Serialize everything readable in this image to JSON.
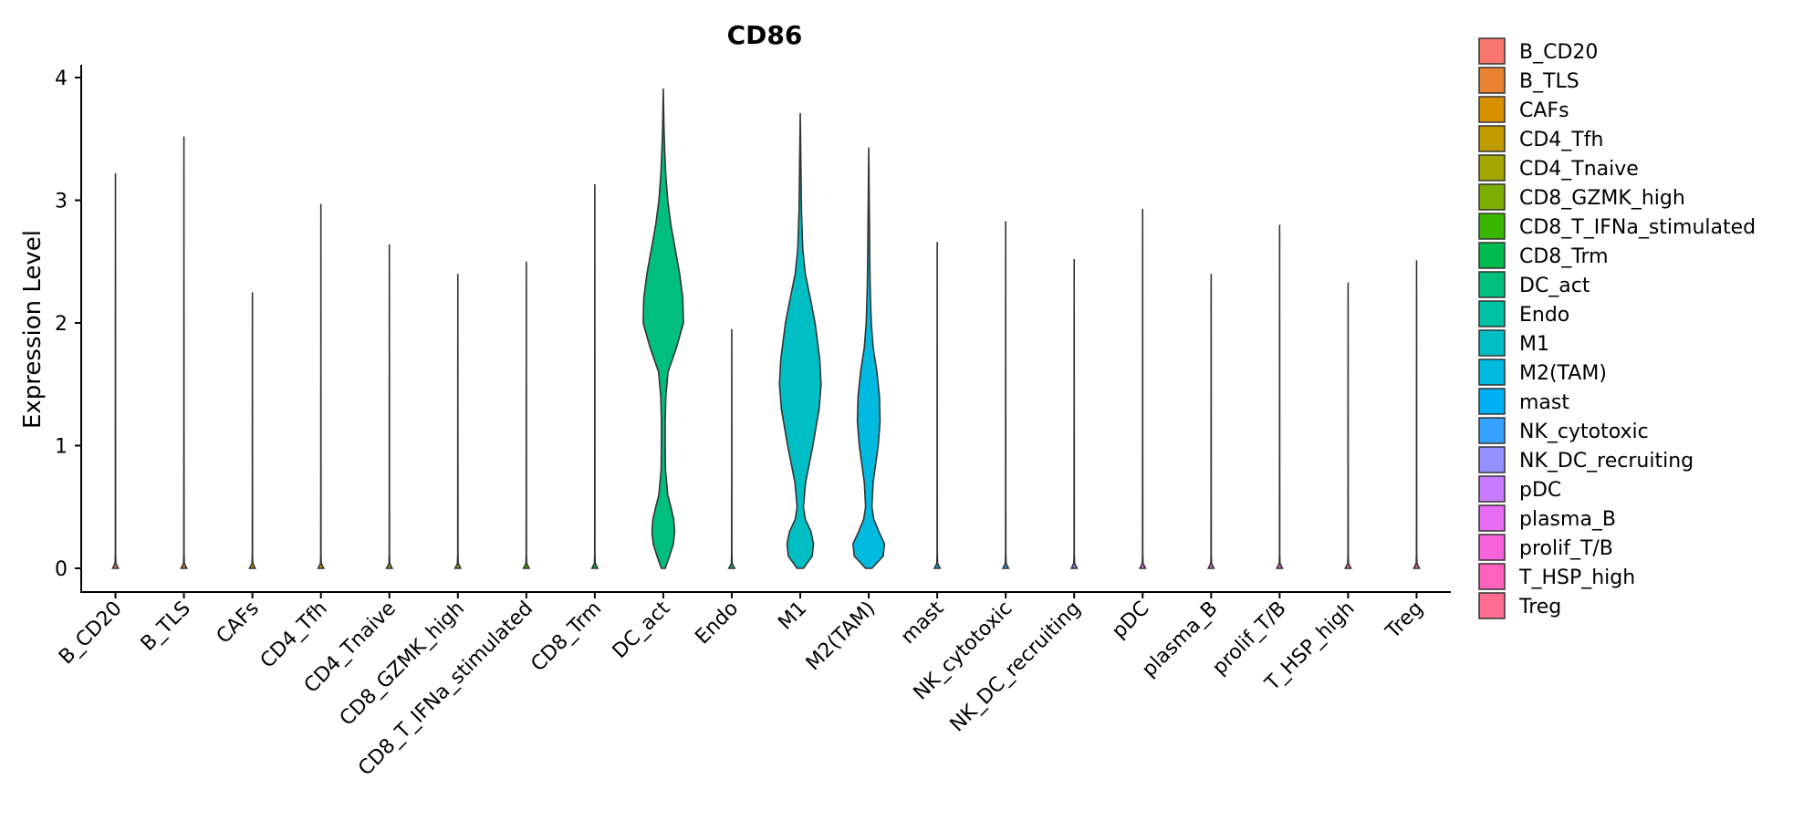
{
  "chart_data": {
    "type": "violin",
    "title": "CD86",
    "xlabel": "",
    "ylabel": "Expression Level",
    "ylim": [
      0,
      4
    ],
    "yticks": [
      "0",
      "1",
      "2",
      "3",
      "4"
    ],
    "grid": false,
    "legend_position": "right",
    "categories": [
      "B_CD20",
      "B_TLS",
      "CAFs",
      "CD4_Tfh",
      "CD4_Tnaive",
      "CD8_GZMK_high",
      "CD8_T_IFNa_stimulated",
      "CD8_Trm",
      "DC_act",
      "Endo",
      "M1",
      "M2(TAM)",
      "mast",
      "NK_cytotoxic",
      "NK_DC_recruiting",
      "pDC",
      "plasma_B",
      "prolif_T/B",
      "T_HSP_high",
      "Treg"
    ],
    "colors": [
      "#F8766D",
      "#EA8331",
      "#D89000",
      "#C09B00",
      "#A3A500",
      "#7CAE00",
      "#39B600",
      "#00BB4E",
      "#00BF7D",
      "#00C1A3",
      "#00BFC4",
      "#00BAE0",
      "#00B0F6",
      "#35A2FF",
      "#9590FF",
      "#C77CFF",
      "#E76BF3",
      "#FA62DB",
      "#FF62BC",
      "#FF6C91"
    ],
    "max_values": [
      3.22,
      3.52,
      2.25,
      2.97,
      2.64,
      2.4,
      2.5,
      3.13,
      3.91,
      1.95,
      3.71,
      3.43,
      2.66,
      2.83,
      2.52,
      2.93,
      2.4,
      2.8,
      2.33,
      2.51
    ],
    "density_profiles": {
      "DC_act": [
        [
          0,
          0.06
        ],
        [
          0.1,
          0.2
        ],
        [
          0.2,
          0.32
        ],
        [
          0.3,
          0.36
        ],
        [
          0.4,
          0.33
        ],
        [
          0.5,
          0.24
        ],
        [
          0.6,
          0.14
        ],
        [
          0.8,
          0.07
        ],
        [
          1.0,
          0.06
        ],
        [
          1.2,
          0.06
        ],
        [
          1.4,
          0.08
        ],
        [
          1.6,
          0.15
        ],
        [
          1.8,
          0.42
        ],
        [
          2.0,
          0.64
        ],
        [
          2.2,
          0.62
        ],
        [
          2.4,
          0.52
        ],
        [
          2.6,
          0.38
        ],
        [
          2.8,
          0.24
        ],
        [
          3.0,
          0.14
        ],
        [
          3.2,
          0.08
        ],
        [
          3.4,
          0.045
        ],
        [
          3.6,
          0.02
        ],
        [
          3.91,
          0.0
        ]
      ],
      "M1": [
        [
          0,
          0.1
        ],
        [
          0.1,
          0.38
        ],
        [
          0.2,
          0.42
        ],
        [
          0.3,
          0.34
        ],
        [
          0.4,
          0.16
        ],
        [
          0.5,
          0.1
        ],
        [
          0.7,
          0.17
        ],
        [
          1.0,
          0.4
        ],
        [
          1.3,
          0.6
        ],
        [
          1.5,
          0.66
        ],
        [
          1.7,
          0.62
        ],
        [
          2.0,
          0.47
        ],
        [
          2.2,
          0.32
        ],
        [
          2.4,
          0.16
        ],
        [
          2.6,
          0.08
        ],
        [
          2.9,
          0.04
        ],
        [
          3.2,
          0.025
        ],
        [
          3.5,
          0.01
        ],
        [
          3.71,
          0.0
        ]
      ],
      "M2(TAM)": [
        [
          0,
          0.1
        ],
        [
          0.1,
          0.46
        ],
        [
          0.2,
          0.5
        ],
        [
          0.3,
          0.32
        ],
        [
          0.4,
          0.16
        ],
        [
          0.5,
          0.1
        ],
        [
          0.7,
          0.14
        ],
        [
          1.0,
          0.3
        ],
        [
          1.2,
          0.36
        ],
        [
          1.4,
          0.34
        ],
        [
          1.6,
          0.26
        ],
        [
          1.8,
          0.14
        ],
        [
          2.0,
          0.08
        ],
        [
          2.3,
          0.045
        ],
        [
          2.6,
          0.03
        ],
        [
          3.0,
          0.015
        ],
        [
          3.43,
          0.0
        ]
      ]
    }
  }
}
